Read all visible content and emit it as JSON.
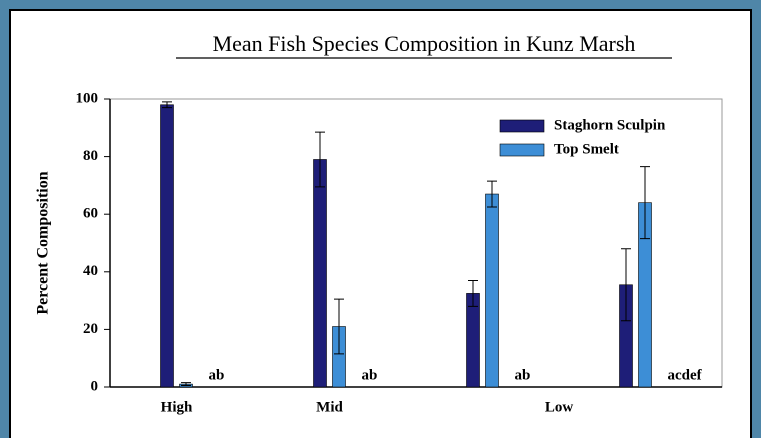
{
  "chart_data": {
    "type": "bar",
    "title": "Mean Fish Species Composition in Kunz Marsh",
    "y_label": "Percent Composition",
    "categories": [
      "High",
      "Mid",
      null,
      null
    ],
    "category_groups": [
      {
        "label": "Low",
        "from": 2,
        "to": 3
      }
    ],
    "series": [
      {
        "name": "Staghorn Sculpin",
        "color": "#1e1e78",
        "values": [
          98,
          79,
          32.5,
          35.5
        ],
        "errors": [
          1,
          9.5,
          4.5,
          12.5
        ]
      },
      {
        "name": "Top Smelt",
        "color": "#3d8ed6",
        "values": [
          1,
          21,
          67,
          64
        ],
        "errors": [
          0.5,
          9.5,
          4.5,
          12.5
        ]
      }
    ],
    "annotations": [
      "ab",
      "ab",
      "ab",
      "acdef"
    ],
    "ylim": [
      0,
      100
    ],
    "yticks": [
      0,
      20,
      40,
      60,
      80,
      100
    ],
    "legend": "top-right",
    "grid": false
  }
}
